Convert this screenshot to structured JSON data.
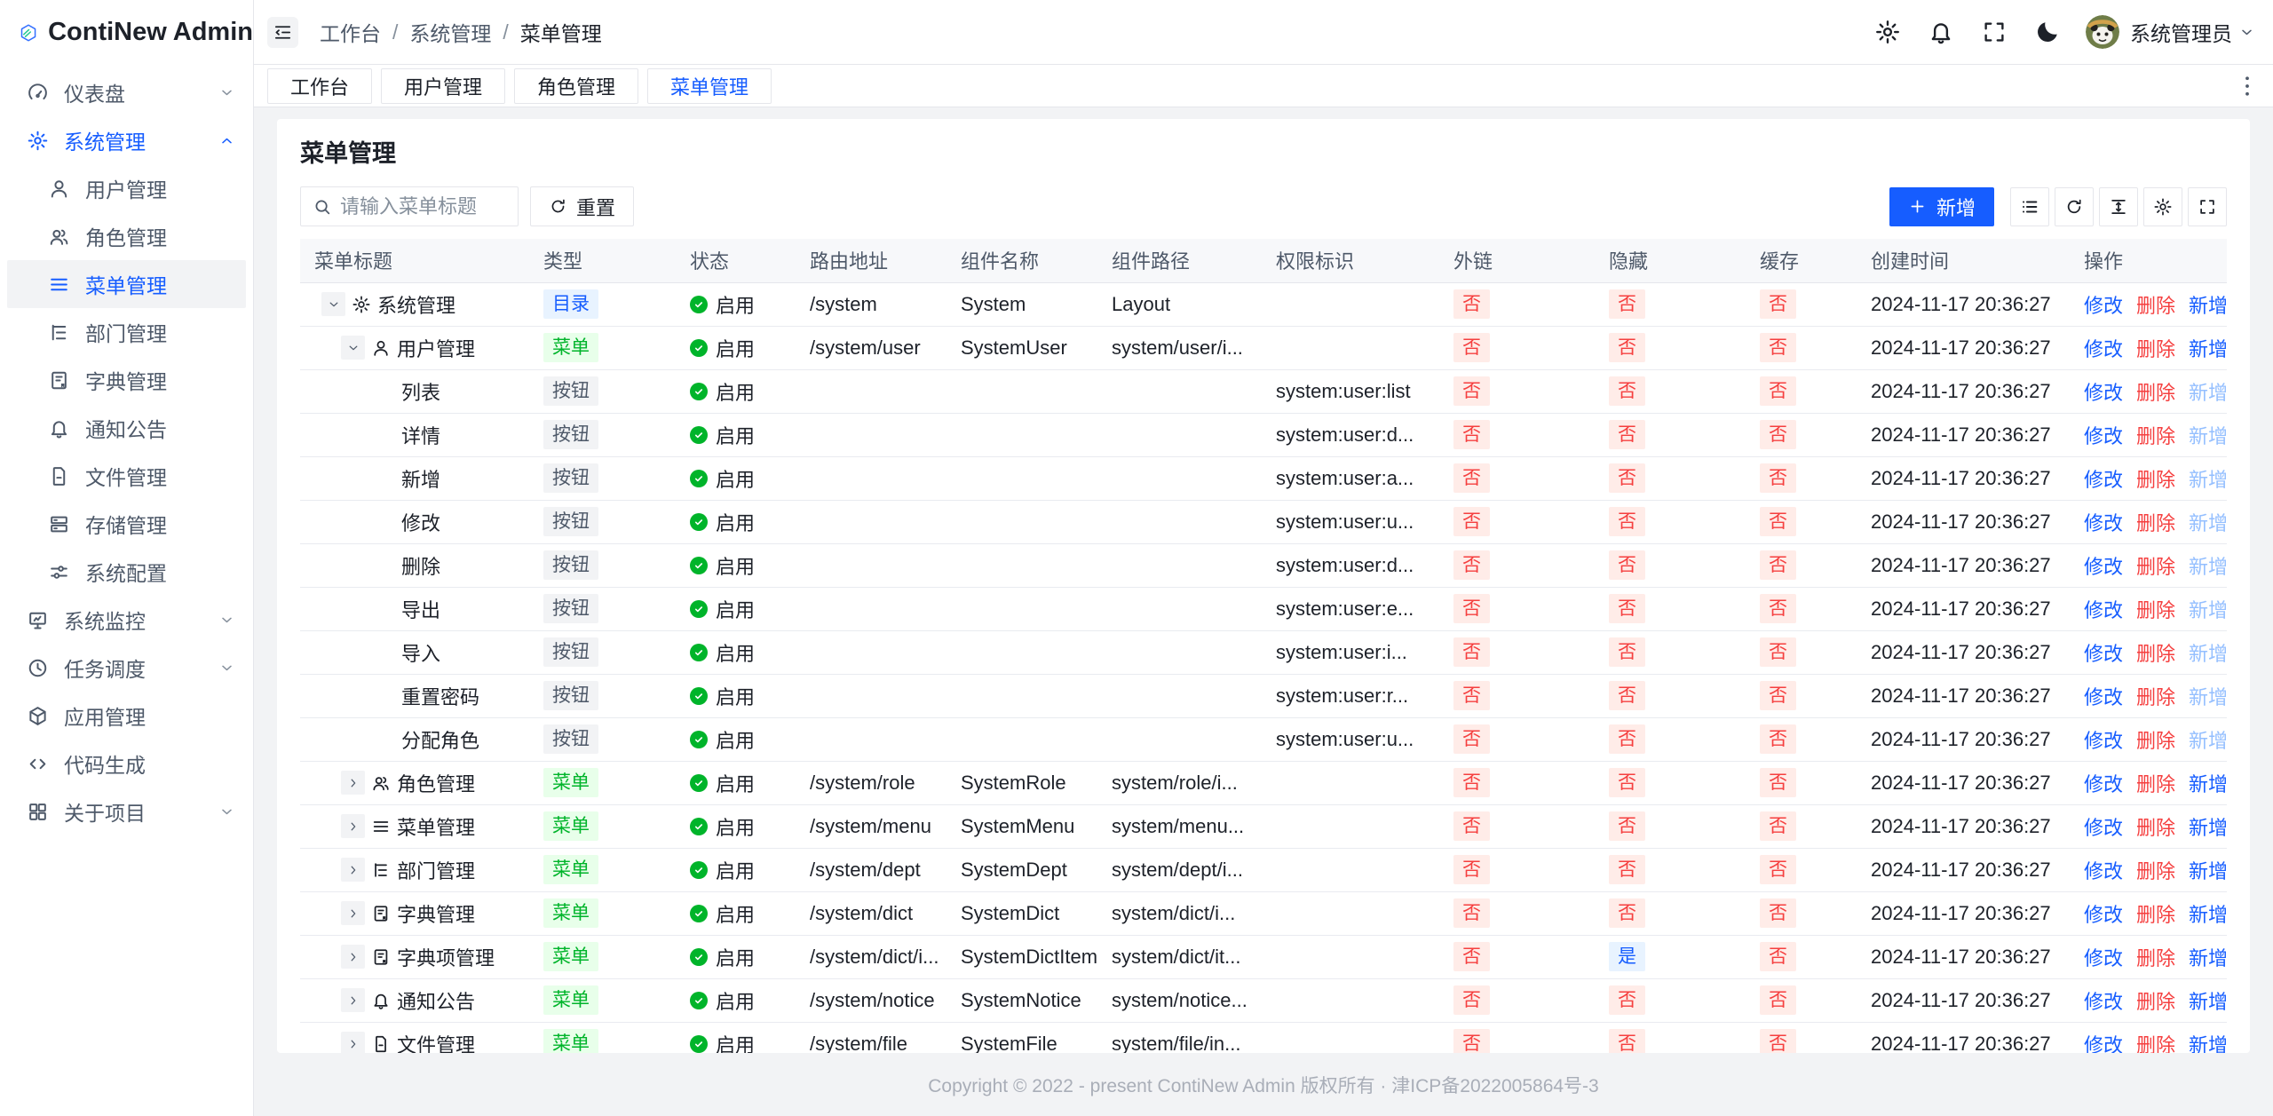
{
  "app": {
    "name": "ContiNew Admin"
  },
  "colors": {
    "accent": "#165dff",
    "success": "#00b42a",
    "danger": "#f53f3f",
    "badge_blue_bg": "#e8f3ff",
    "badge_green_bg": "#e8ffea",
    "badge_red_bg": "#ffece8",
    "badge_gray_bg": "#f2f3f5"
  },
  "sidebar": {
    "items": [
      {
        "icon": "dashboard",
        "label": "仪表盘",
        "level": 1,
        "arrow": "down"
      },
      {
        "icon": "gear",
        "label": "系统管理",
        "level": 1,
        "arrow": "up",
        "open": true
      },
      {
        "icon": "user",
        "label": "用户管理",
        "level": 2
      },
      {
        "icon": "users",
        "label": "角色管理",
        "level": 2
      },
      {
        "icon": "menu",
        "label": "菜单管理",
        "level": 2,
        "active": true
      },
      {
        "icon": "tree",
        "label": "部门管理",
        "level": 2
      },
      {
        "icon": "dict",
        "label": "字典管理",
        "level": 2
      },
      {
        "icon": "bell",
        "label": "通知公告",
        "level": 2
      },
      {
        "icon": "file",
        "label": "文件管理",
        "level": 2
      },
      {
        "icon": "storage",
        "label": "存储管理",
        "level": 2
      },
      {
        "icon": "sliders",
        "label": "系统配置",
        "level": 2
      },
      {
        "icon": "monitor",
        "label": "系统监控",
        "level": 1,
        "arrow": "down"
      },
      {
        "icon": "clock",
        "label": "任务调度",
        "level": 1,
        "arrow": "down"
      },
      {
        "icon": "cube",
        "label": "应用管理",
        "level": 1
      },
      {
        "icon": "code",
        "label": "代码生成",
        "level": 1
      },
      {
        "icon": "grid",
        "label": "关于项目",
        "level": 1,
        "arrow": "down"
      }
    ]
  },
  "header": {
    "breadcrumb": [
      "工作台",
      "系统管理",
      "菜单管理"
    ],
    "icons": [
      "gear",
      "bell",
      "fullscreen",
      "moon"
    ],
    "user": {
      "name": "系统管理员"
    }
  },
  "tabs": {
    "items": [
      {
        "label": "工作台"
      },
      {
        "label": "用户管理"
      },
      {
        "label": "角色管理"
      },
      {
        "label": "菜单管理",
        "active": true
      }
    ]
  },
  "main": {
    "title": "菜单管理",
    "search_placeholder": "请输入菜单标题",
    "search_value": "",
    "reset_label": "重置",
    "add_label": "新增",
    "tools": [
      "list",
      "refresh",
      "line-height",
      "gear",
      "fullscreen"
    ]
  },
  "table": {
    "columns": [
      "菜单标题",
      "类型",
      "状态",
      "路由地址",
      "组件名称",
      "组件路径",
      "权限标识",
      "外链",
      "隐藏",
      "缓存",
      "创建时间",
      "操作"
    ],
    "actions": {
      "edit": "修改",
      "delete": "删除",
      "add": "新增"
    },
    "rows": [
      {
        "level": 1,
        "expand": "down",
        "icon": "gear",
        "title": "系统管理",
        "type": "目录",
        "status": "启用",
        "route": "/system",
        "component_name": "System",
        "component_path": "Layout",
        "permission": "",
        "external": "否",
        "hidden": "否",
        "cache": "否",
        "created": "2024-11-17 20:36:27",
        "add_disabled": false
      },
      {
        "level": 2,
        "expand": "down",
        "icon": "user",
        "title": "用户管理",
        "type": "菜单",
        "status": "启用",
        "route": "/system/user",
        "component_name": "SystemUser",
        "component_path": "system/user/i...",
        "permission": "",
        "external": "否",
        "hidden": "否",
        "cache": "否",
        "created": "2024-11-17 20:36:27",
        "add_disabled": false
      },
      {
        "level": 3,
        "expand": null,
        "icon": null,
        "title": "列表",
        "type": "按钮",
        "status": "启用",
        "route": "",
        "component_name": "",
        "component_path": "",
        "permission": "system:user:list",
        "external": "否",
        "hidden": "否",
        "cache": "否",
        "created": "2024-11-17 20:36:27",
        "add_disabled": true
      },
      {
        "level": 3,
        "expand": null,
        "icon": null,
        "title": "详情",
        "type": "按钮",
        "status": "启用",
        "route": "",
        "component_name": "",
        "component_path": "",
        "permission": "system:user:d...",
        "external": "否",
        "hidden": "否",
        "cache": "否",
        "created": "2024-11-17 20:36:27",
        "add_disabled": true
      },
      {
        "level": 3,
        "expand": null,
        "icon": null,
        "title": "新增",
        "type": "按钮",
        "status": "启用",
        "route": "",
        "component_name": "",
        "component_path": "",
        "permission": "system:user:a...",
        "external": "否",
        "hidden": "否",
        "cache": "否",
        "created": "2024-11-17 20:36:27",
        "add_disabled": true
      },
      {
        "level": 3,
        "expand": null,
        "icon": null,
        "title": "修改",
        "type": "按钮",
        "status": "启用",
        "route": "",
        "component_name": "",
        "component_path": "",
        "permission": "system:user:u...",
        "external": "否",
        "hidden": "否",
        "cache": "否",
        "created": "2024-11-17 20:36:27",
        "add_disabled": true
      },
      {
        "level": 3,
        "expand": null,
        "icon": null,
        "title": "删除",
        "type": "按钮",
        "status": "启用",
        "route": "",
        "component_name": "",
        "component_path": "",
        "permission": "system:user:d...",
        "external": "否",
        "hidden": "否",
        "cache": "否",
        "created": "2024-11-17 20:36:27",
        "add_disabled": true
      },
      {
        "level": 3,
        "expand": null,
        "icon": null,
        "title": "导出",
        "type": "按钮",
        "status": "启用",
        "route": "",
        "component_name": "",
        "component_path": "",
        "permission": "system:user:e...",
        "external": "否",
        "hidden": "否",
        "cache": "否",
        "created": "2024-11-17 20:36:27",
        "add_disabled": true
      },
      {
        "level": 3,
        "expand": null,
        "icon": null,
        "title": "导入",
        "type": "按钮",
        "status": "启用",
        "route": "",
        "component_name": "",
        "component_path": "",
        "permission": "system:user:i...",
        "external": "否",
        "hidden": "否",
        "cache": "否",
        "created": "2024-11-17 20:36:27",
        "add_disabled": true
      },
      {
        "level": 3,
        "expand": null,
        "icon": null,
        "title": "重置密码",
        "type": "按钮",
        "status": "启用",
        "route": "",
        "component_name": "",
        "component_path": "",
        "permission": "system:user:r...",
        "external": "否",
        "hidden": "否",
        "cache": "否",
        "created": "2024-11-17 20:36:27",
        "add_disabled": true
      },
      {
        "level": 3,
        "expand": null,
        "icon": null,
        "title": "分配角色",
        "type": "按钮",
        "status": "启用",
        "route": "",
        "component_name": "",
        "component_path": "",
        "permission": "system:user:u...",
        "external": "否",
        "hidden": "否",
        "cache": "否",
        "created": "2024-11-17 20:36:27",
        "add_disabled": true
      },
      {
        "level": 2,
        "expand": "right",
        "icon": "users",
        "title": "角色管理",
        "type": "菜单",
        "status": "启用",
        "route": "/system/role",
        "component_name": "SystemRole",
        "component_path": "system/role/i...",
        "permission": "",
        "external": "否",
        "hidden": "否",
        "cache": "否",
        "created": "2024-11-17 20:36:27",
        "add_disabled": false
      },
      {
        "level": 2,
        "expand": "right",
        "icon": "menu",
        "title": "菜单管理",
        "type": "菜单",
        "status": "启用",
        "route": "/system/menu",
        "component_name": "SystemMenu",
        "component_path": "system/menu...",
        "permission": "",
        "external": "否",
        "hidden": "否",
        "cache": "否",
        "created": "2024-11-17 20:36:27",
        "add_disabled": false
      },
      {
        "level": 2,
        "expand": "right",
        "icon": "tree",
        "title": "部门管理",
        "type": "菜单",
        "status": "启用",
        "route": "/system/dept",
        "component_name": "SystemDept",
        "component_path": "system/dept/i...",
        "permission": "",
        "external": "否",
        "hidden": "否",
        "cache": "否",
        "created": "2024-11-17 20:36:27",
        "add_disabled": false
      },
      {
        "level": 2,
        "expand": "right",
        "icon": "dict",
        "title": "字典管理",
        "type": "菜单",
        "status": "启用",
        "route": "/system/dict",
        "component_name": "SystemDict",
        "component_path": "system/dict/i...",
        "permission": "",
        "external": "否",
        "hidden": "否",
        "cache": "否",
        "created": "2024-11-17 20:36:27",
        "add_disabled": false
      },
      {
        "level": 2,
        "expand": "right",
        "icon": "dict",
        "title": "字典项管理",
        "type": "菜单",
        "status": "启用",
        "route": "/system/dict/i...",
        "component_name": "SystemDictItem",
        "component_path": "system/dict/it...",
        "permission": "",
        "external": "否",
        "hidden": "是",
        "cache": "否",
        "created": "2024-11-17 20:36:27",
        "add_disabled": false
      },
      {
        "level": 2,
        "expand": "right",
        "icon": "bell",
        "title": "通知公告",
        "type": "菜单",
        "status": "启用",
        "route": "/system/notice",
        "component_name": "SystemNotice",
        "component_path": "system/notice...",
        "permission": "",
        "external": "否",
        "hidden": "否",
        "cache": "否",
        "created": "2024-11-17 20:36:27",
        "add_disabled": false
      },
      {
        "level": 2,
        "expand": "right",
        "icon": "file",
        "title": "文件管理",
        "type": "菜单",
        "status": "启用",
        "route": "/system/file",
        "component_name": "SystemFile",
        "component_path": "system/file/in...",
        "permission": "",
        "external": "否",
        "hidden": "否",
        "cache": "否",
        "created": "2024-11-17 20:36:27",
        "add_disabled": false
      }
    ]
  },
  "footer": {
    "copyright": "Copyright © 2022 - present ContiNew Admin 版权所有 · 津ICP备2022005864号-3"
  }
}
